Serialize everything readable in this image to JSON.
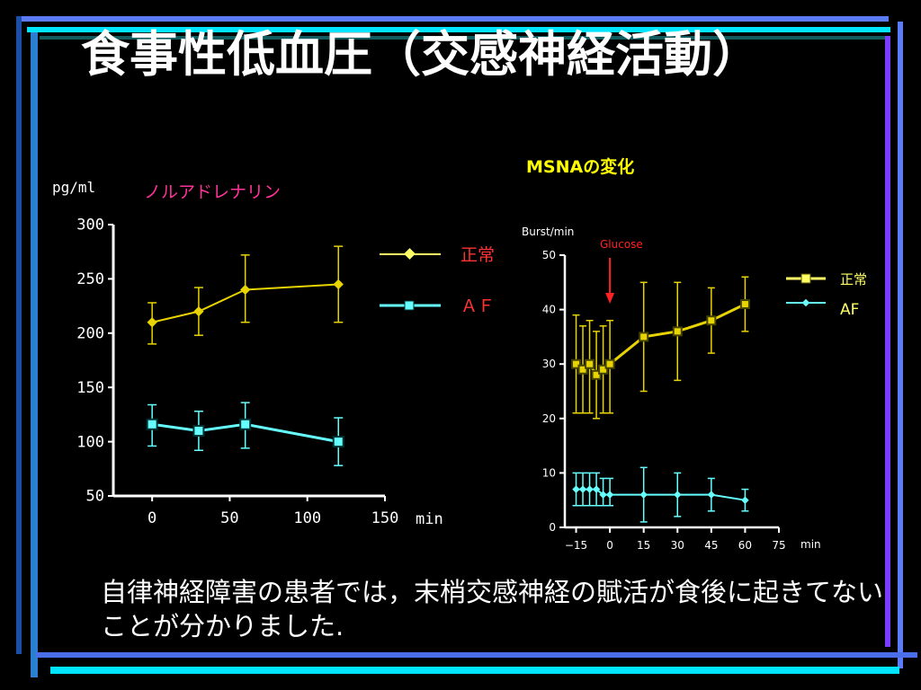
{
  "slide": {
    "title": "食事性低血圧（交感神経活動）",
    "caption": "自律神経障害の患者では，末梢交感神経の賦活が食後に起きてないことが分かりました."
  },
  "colors": {
    "background": "#000000",
    "title": "#ffffff",
    "left_title": "#ff3399",
    "right_title": "#ffff00",
    "normal": "#ffff66",
    "af": "#66ffff",
    "normal_dark": "#e8d400",
    "af_dark": "#33cccc",
    "glucose": "#ff2222",
    "legend_label_left": "#ff3333",
    "axis": "#ffffff",
    "deco_blue": "#5b7cf6",
    "deco_teal": "#1e9aa0",
    "deco_purple": "#7b3cff",
    "deco_cyan": "#00ffff"
  },
  "chart_data": [
    {
      "type": "line",
      "title": "ノルアドレナリン",
      "ylabel": "pg/ml",
      "xlabel": "min",
      "x": [
        0,
        30,
        60,
        120
      ],
      "xlim": [
        -25,
        150
      ],
      "ylim": [
        50,
        300
      ],
      "xticks": [
        "0",
        "50",
        "100",
        "150"
      ],
      "yticks": [
        "300",
        "250",
        "200",
        "150",
        "100",
        "50"
      ],
      "series": [
        {
          "name": "正常",
          "marker": "diamond",
          "values": [
            210,
            220,
            240,
            245
          ],
          "err_low": [
            20,
            22,
            30,
            35
          ],
          "err_high": [
            18,
            22,
            32,
            35
          ]
        },
        {
          "name": "ＡＦ",
          "marker": "square",
          "values": [
            116,
            110,
            116,
            100
          ],
          "err_low": [
            20,
            18,
            22,
            22
          ],
          "err_high": [
            18,
            18,
            20,
            22
          ]
        }
      ]
    },
    {
      "type": "line",
      "title": "MSNAの変化",
      "ylabel": "Burst/min",
      "xlabel": "min",
      "annotation": "Glucose",
      "annotation_x": 0,
      "x": [
        -15,
        -12,
        -9,
        -6,
        -3,
        0,
        15,
        30,
        45,
        60
      ],
      "xlim": [
        -20,
        75
      ],
      "ylim": [
        0,
        50
      ],
      "xticks": [
        "−15",
        "0",
        "15",
        "30",
        "45",
        "60",
        "75"
      ],
      "yticks": [
        "50",
        "40",
        "30",
        "20",
        "10",
        "0"
      ],
      "series": [
        {
          "name": "正常",
          "marker": "square",
          "values": [
            30,
            29,
            30,
            28,
            29,
            30,
            35,
            36,
            38,
            41
          ],
          "err_low": [
            9,
            8,
            9,
            8,
            8,
            9,
            10,
            9,
            6,
            5
          ],
          "err_high": [
            9,
            8,
            8,
            8,
            8,
            8,
            10,
            9,
            6,
            5
          ]
        },
        {
          "name": "AF",
          "marker": "diamond",
          "values": [
            7,
            7,
            7,
            7,
            6,
            6,
            6,
            6,
            6,
            5
          ],
          "err_low": [
            3,
            3,
            3,
            3,
            2,
            2,
            5,
            4,
            3,
            2
          ],
          "err_high": [
            3,
            3,
            3,
            3,
            3,
            3,
            5,
            4,
            3,
            2
          ]
        }
      ]
    }
  ]
}
